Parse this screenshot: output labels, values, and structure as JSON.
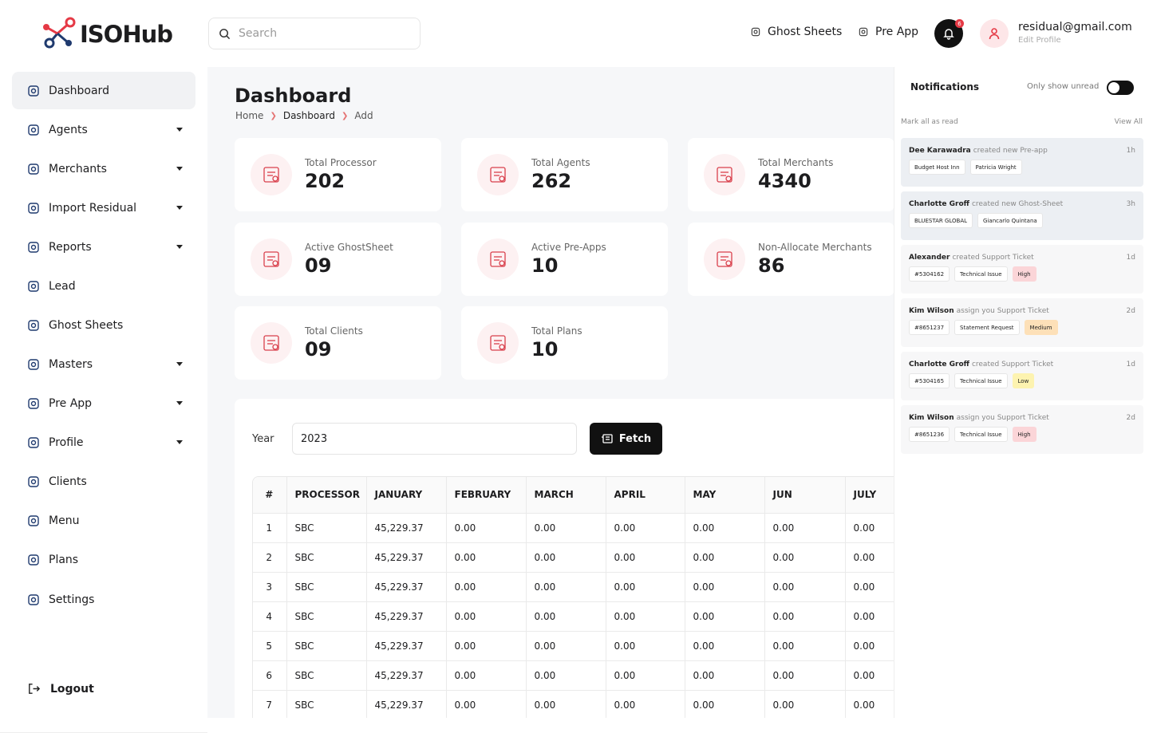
{
  "brand": "ISOHub",
  "search_placeholder": "Search",
  "top_links": [
    "Ghost Sheets",
    "Pre App"
  ],
  "notification_count": 6,
  "user": {
    "email": "residual@gmail.com",
    "edit": "Edit Profile"
  },
  "nav": [
    {
      "label": "Dashboard",
      "dropdown": false,
      "active": true
    },
    {
      "label": "Agents",
      "dropdown": true
    },
    {
      "label": "Merchants",
      "dropdown": true
    },
    {
      "label": "Import Residual",
      "dropdown": true
    },
    {
      "label": "Reports",
      "dropdown": true
    },
    {
      "label": "Lead",
      "dropdown": false
    },
    {
      "label": "Ghost Sheets",
      "dropdown": false
    },
    {
      "label": "Masters",
      "dropdown": true
    },
    {
      "label": "Pre App",
      "dropdown": true
    },
    {
      "label": "Profile",
      "dropdown": true
    },
    {
      "label": "Clients",
      "dropdown": false
    },
    {
      "label": "Menu",
      "dropdown": false
    },
    {
      "label": "Plans",
      "dropdown": false
    },
    {
      "label": "Settings",
      "dropdown": false
    }
  ],
  "logout": "Logout",
  "page": {
    "title": "Dashboard",
    "breadcrumb": [
      "Home",
      "Dashboard",
      "Add"
    ]
  },
  "stats": [
    {
      "label": "Total Processor",
      "value": "202"
    },
    {
      "label": "Total Agents",
      "value": "262"
    },
    {
      "label": "Total Merchants",
      "value": "4340"
    },
    {
      "label": "Active GhostSheet",
      "value": "09"
    },
    {
      "label": "Active Pre-Apps",
      "value": "10"
    },
    {
      "label": "Non-Allocate Merchants",
      "value": "86"
    },
    {
      "label": "Total Clients",
      "value": "09"
    },
    {
      "label": "Total Plans",
      "value": "10"
    }
  ],
  "filter": {
    "label": "Year",
    "value": "2023",
    "button": "Fetch"
  },
  "table": {
    "columns": [
      "#",
      "PROCESSOR",
      "JANUARY",
      "FEBRUARY",
      "MARCH",
      "APRIL",
      "MAY",
      "JUN",
      "JULY"
    ],
    "rows": [
      [
        "1",
        "SBC",
        "45,229.37",
        "0.00",
        "0.00",
        "0.00",
        "0.00",
        "0.00",
        "0.00"
      ],
      [
        "2",
        "SBC",
        "45,229.37",
        "0.00",
        "0.00",
        "0.00",
        "0.00",
        "0.00",
        "0.00"
      ],
      [
        "3",
        "SBC",
        "45,229.37",
        "0.00",
        "0.00",
        "0.00",
        "0.00",
        "0.00",
        "0.00"
      ],
      [
        "4",
        "SBC",
        "45,229.37",
        "0.00",
        "0.00",
        "0.00",
        "0.00",
        "0.00",
        "0.00"
      ],
      [
        "5",
        "SBC",
        "45,229.37",
        "0.00",
        "0.00",
        "0.00",
        "0.00",
        "0.00",
        "0.00"
      ],
      [
        "6",
        "SBC",
        "45,229.37",
        "0.00",
        "0.00",
        "0.00",
        "0.00",
        "0.00",
        "0.00"
      ],
      [
        "7",
        "SBC",
        "45,229.37",
        "0.00",
        "0.00",
        "0.00",
        "0.00",
        "0.00",
        "0.00"
      ]
    ]
  },
  "notifications": {
    "title": "Notifications",
    "toggle_label": "Only show unread",
    "mark_all": "Mark all as read",
    "view_all": "View All",
    "items": [
      {
        "name": "Dee Karawadra",
        "action": "created new Pre-app",
        "time": "1h",
        "unread": true,
        "tags": [
          {
            "text": "Budget Host Inn"
          },
          {
            "text": "Patricia Wright"
          }
        ]
      },
      {
        "name": "Charlotte Groff",
        "action": "created new Ghost-Sheet",
        "time": "3h",
        "unread": true,
        "tags": [
          {
            "text": "BLUESTAR GLOBAL"
          },
          {
            "text": "Giancarlo Quintana"
          }
        ]
      },
      {
        "name": "Alexander",
        "action": "created Support Ticket",
        "time": "1d",
        "unread": false,
        "tags": [
          {
            "text": "#5304162"
          },
          {
            "text": "Technical Issue"
          },
          {
            "text": "High",
            "color": "#fbd5d8"
          }
        ]
      },
      {
        "name": "Kim Wilson",
        "action": "assign you Support Ticket",
        "time": "2d",
        "unread": false,
        "tags": [
          {
            "text": "#8651237"
          },
          {
            "text": "Statement Request"
          },
          {
            "text": "Medium",
            "color": "#fde0b8"
          }
        ]
      },
      {
        "name": "Charlotte Groff",
        "action": "created Support Ticket",
        "time": "1d",
        "unread": false,
        "tags": [
          {
            "text": "#5304165"
          },
          {
            "text": "Technical Issue"
          },
          {
            "text": "Low",
            "color": "#fdf3b0"
          }
        ]
      },
      {
        "name": "Kim Wilson",
        "action": "assign you Support Ticket",
        "time": "2d",
        "unread": false,
        "tags": [
          {
            "text": "#8651236"
          },
          {
            "text": "Technical Issue"
          },
          {
            "text": "High",
            "color": "#fbd5d8"
          }
        ]
      }
    ]
  }
}
